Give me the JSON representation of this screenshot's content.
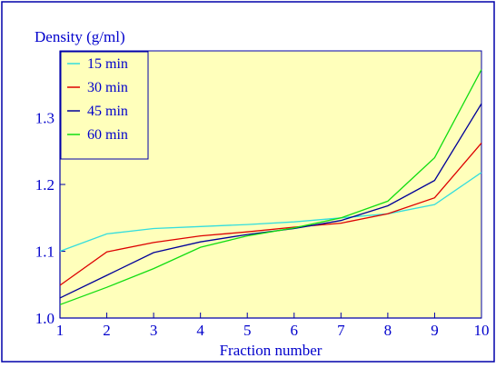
{
  "chart_data": {
    "type": "line",
    "ylabel": "Density (g/ml)",
    "xlabel": "Fraction number",
    "x": [
      1,
      2,
      3,
      4,
      5,
      6,
      7,
      8,
      9,
      10
    ],
    "xlim": [
      1,
      10
    ],
    "ylim": [
      1.0,
      1.4
    ],
    "xticks": [
      "1",
      "2",
      "3",
      "4",
      "5",
      "6",
      "7",
      "8",
      "9",
      "10"
    ],
    "yticks": [
      {
        "value": 1.0,
        "label": "1.0"
      },
      {
        "value": 1.1,
        "label": "1.1"
      },
      {
        "value": 1.2,
        "label": "1.2"
      },
      {
        "value": 1.3,
        "label": "1.3"
      }
    ],
    "legend_position": "top-left",
    "grid": false,
    "series": [
      {
        "name": "15 min",
        "color": "#33dddd",
        "values": [
          1.1,
          1.126,
          1.134,
          1.137,
          1.14,
          1.144,
          1.15,
          1.156,
          1.17,
          1.218
        ]
      },
      {
        "name": "30 min",
        "color": "#dd0000",
        "values": [
          1.049,
          1.099,
          1.113,
          1.123,
          1.129,
          1.136,
          1.142,
          1.156,
          1.18,
          1.262
        ]
      },
      {
        "name": "45 min",
        "color": "#000099",
        "values": [
          1.03,
          1.064,
          1.098,
          1.114,
          1.125,
          1.134,
          1.146,
          1.168,
          1.206,
          1.321
        ]
      },
      {
        "name": "60 min",
        "color": "#11dd11",
        "values": [
          1.02,
          1.046,
          1.074,
          1.106,
          1.123,
          1.135,
          1.15,
          1.175,
          1.24,
          1.372
        ]
      }
    ],
    "colors": {
      "plot_bg": "#ffffbb",
      "axes": "#0000aa",
      "text": "#0000cc",
      "frame": "#0000aa"
    }
  }
}
